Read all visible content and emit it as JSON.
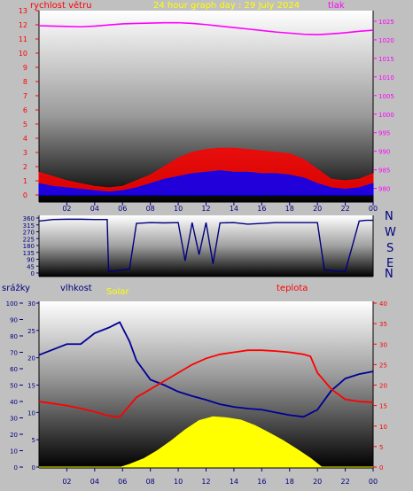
{
  "header": {
    "left_label": "rychlost větru",
    "title": "24 hour graph day : 29 July 2024",
    "right_label": "tlak"
  },
  "compass": [
    "N",
    "W",
    "S",
    "E",
    "N"
  ],
  "bottom_header": {
    "left_label": "srážky",
    "humidity_label": "vlhkost",
    "solar_label": "Solar",
    "temp_label": "teplota"
  },
  "colors": {
    "background": "#c0c0c0",
    "wind_avg": "#0000ff",
    "wind_gust": "#ff0000",
    "pressure": "#ff00ff",
    "direction": "#000080",
    "humidity": "#000099",
    "temperature": "#ff0000",
    "solar": "#ffff00",
    "title": "#ffff00",
    "axis_left": "#ff0000",
    "axis_right": "#ff00ff",
    "axis_bottom": "#000080"
  },
  "chart_data": [
    {
      "type": "line",
      "name": "wind_pressure",
      "xticks": [
        "02",
        "04",
        "06",
        "08",
        "10",
        "12",
        "14",
        "16",
        "18",
        "20",
        "22",
        "00"
      ],
      "y_left_ticks": [
        "0",
        "1",
        "2",
        "3",
        "4",
        "5",
        "6",
        "7",
        "8",
        "9",
        "10",
        "11",
        "12",
        "13"
      ],
      "y_left_range": [
        0,
        13
      ],
      "y_right_ticks": [
        "980",
        "985",
        "990",
        "995",
        "1000",
        "1005",
        "1010",
        "1015",
        "1020",
        "1025"
      ],
      "y_right_range": [
        978,
        1030
      ],
      "x_range": [
        0,
        24
      ],
      "series": [
        {
          "key": "pressure",
          "axis": "right",
          "x": [
            0,
            1,
            2,
            3,
            4,
            5,
            6,
            7,
            8,
            9,
            10,
            11,
            12,
            13,
            14,
            15,
            16,
            17,
            18,
            19,
            20,
            21,
            22,
            23,
            24
          ],
          "values": [
            1023.8,
            1023.7,
            1023.6,
            1023.5,
            1023.7,
            1024.0,
            1024.3,
            1024.4,
            1024.5,
            1024.6,
            1024.6,
            1024.4,
            1024.1,
            1023.7,
            1023.3,
            1022.9,
            1022.5,
            1022.1,
            1021.8,
            1021.5,
            1021.4,
            1021.6,
            1021.9,
            1022.3,
            1022.6
          ]
        },
        {
          "key": "wind_gust",
          "axis": "left",
          "x": [
            0,
            1,
            2,
            3,
            4,
            5,
            6,
            7,
            8,
            9,
            10,
            11,
            12,
            13,
            14,
            15,
            16,
            17,
            18,
            19,
            20,
            21,
            22,
            23,
            24
          ],
          "values": [
            1.6,
            1.3,
            1.0,
            0.8,
            0.6,
            0.5,
            0.6,
            1.0,
            1.4,
            2.0,
            2.6,
            3.0,
            3.2,
            3.3,
            3.3,
            3.2,
            3.1,
            3.0,
            2.9,
            2.5,
            1.8,
            1.1,
            1.0,
            1.1,
            1.5
          ]
        },
        {
          "key": "wind_avg",
          "axis": "left",
          "x": [
            0,
            1,
            2,
            3,
            4,
            5,
            6,
            7,
            8,
            9,
            10,
            11,
            12,
            13,
            14,
            15,
            16,
            17,
            18,
            19,
            20,
            21,
            22,
            23,
            24
          ],
          "values": [
            0.8,
            0.6,
            0.5,
            0.4,
            0.3,
            0.2,
            0.3,
            0.5,
            0.8,
            1.1,
            1.3,
            1.5,
            1.6,
            1.7,
            1.6,
            1.6,
            1.5,
            1.5,
            1.4,
            1.2,
            0.8,
            0.5,
            0.4,
            0.5,
            0.8
          ]
        }
      ]
    },
    {
      "type": "line",
      "name": "wind_direction",
      "y_ticks": [
        "0",
        "45",
        "90",
        "135",
        "180",
        "225",
        "270",
        "315",
        "360"
      ],
      "y_range": [
        0,
        360
      ],
      "x_range": [
        0,
        24
      ],
      "series": [
        {
          "key": "direction",
          "x": [
            0,
            0.5,
            1,
            2,
            3,
            4,
            4.9,
            5,
            5.5,
            6,
            6.5,
            7,
            8,
            9,
            10,
            10.5,
            11,
            11.5,
            12,
            12.5,
            13,
            14,
            15,
            16,
            17,
            18,
            19,
            20,
            20.5,
            21,
            22,
            23,
            23.5,
            24
          ],
          "values": [
            340,
            345,
            350,
            352,
            352,
            350,
            350,
            10,
            15,
            20,
            25,
            325,
            330,
            328,
            330,
            80,
            330,
            120,
            330,
            60,
            328,
            330,
            320,
            325,
            330,
            330,
            330,
            330,
            20,
            15,
            10,
            340,
            345,
            345
          ]
        }
      ]
    },
    {
      "type": "line",
      "name": "humidity_temperature_solar",
      "xticks": [
        "02",
        "04",
        "06",
        "08",
        "10",
        "12",
        "14",
        "16",
        "18",
        "20",
        "22",
        "00"
      ],
      "y_rain_ticks": [
        "0",
        "10",
        "20",
        "30",
        "40",
        "50",
        "60",
        "70",
        "80",
        "90",
        "100"
      ],
      "y_rain_range": [
        0,
        100
      ],
      "y_humidity_ticks": [
        "0",
        "5",
        "10",
        "15",
        "20",
        "25",
        "30"
      ],
      "y_humidity_range": [
        0,
        30
      ],
      "y_temp_ticks": [
        "0",
        "5",
        "10",
        "15",
        "20",
        "25",
        "30",
        "35",
        "40"
      ],
      "y_temp_range": [
        0,
        40
      ],
      "x_range": [
        0,
        24
      ],
      "series": [
        {
          "key": "humidity",
          "axis": "humidity",
          "x": [
            0,
            1,
            2,
            3,
            4,
            5,
            5.8,
            6.5,
            7,
            8,
            9,
            10,
            11,
            12,
            13,
            14,
            15,
            16,
            17,
            18,
            19,
            20,
            21,
            22,
            23,
            24
          ],
          "values": [
            20.5,
            21.5,
            22.5,
            22.5,
            24.5,
            25.5,
            26.5,
            23,
            19.5,
            16,
            15,
            13.8,
            13,
            12.3,
            11.5,
            11,
            10.7,
            10.5,
            10,
            9.5,
            9.2,
            10.5,
            14,
            16.2,
            17,
            17.5
          ]
        },
        {
          "key": "temperature",
          "axis": "temp",
          "x": [
            0,
            1,
            2,
            3,
            4,
            5,
            5.8,
            6.5,
            7,
            8,
            9,
            10,
            11,
            12,
            13,
            14,
            15,
            16,
            17,
            18,
            19,
            19.5,
            20,
            21,
            22,
            23,
            24
          ],
          "values": [
            16,
            15.5,
            15,
            14.3,
            13.5,
            12.5,
            12.2,
            15,
            17,
            19,
            21,
            23,
            25,
            26.5,
            27.5,
            28,
            28.5,
            28.5,
            28.3,
            28,
            27.5,
            27,
            23,
            19,
            16.5,
            16,
            15.8
          ]
        },
        {
          "key": "solar",
          "axis": "humidity",
          "x": [
            0,
            5.9,
            6.5,
            7.5,
            8.5,
            9.5,
            10.5,
            11.5,
            12.5,
            13.5,
            14.5,
            15.5,
            16.5,
            17.5,
            18.5,
            19.5,
            20.3,
            24
          ],
          "values": [
            0,
            0,
            0.5,
            1.5,
            3.0,
            4.8,
            6.8,
            8.5,
            9.2,
            9.0,
            8.6,
            7.6,
            6.3,
            4.9,
            3.3,
            1.6,
            0,
            0
          ]
        }
      ]
    }
  ]
}
